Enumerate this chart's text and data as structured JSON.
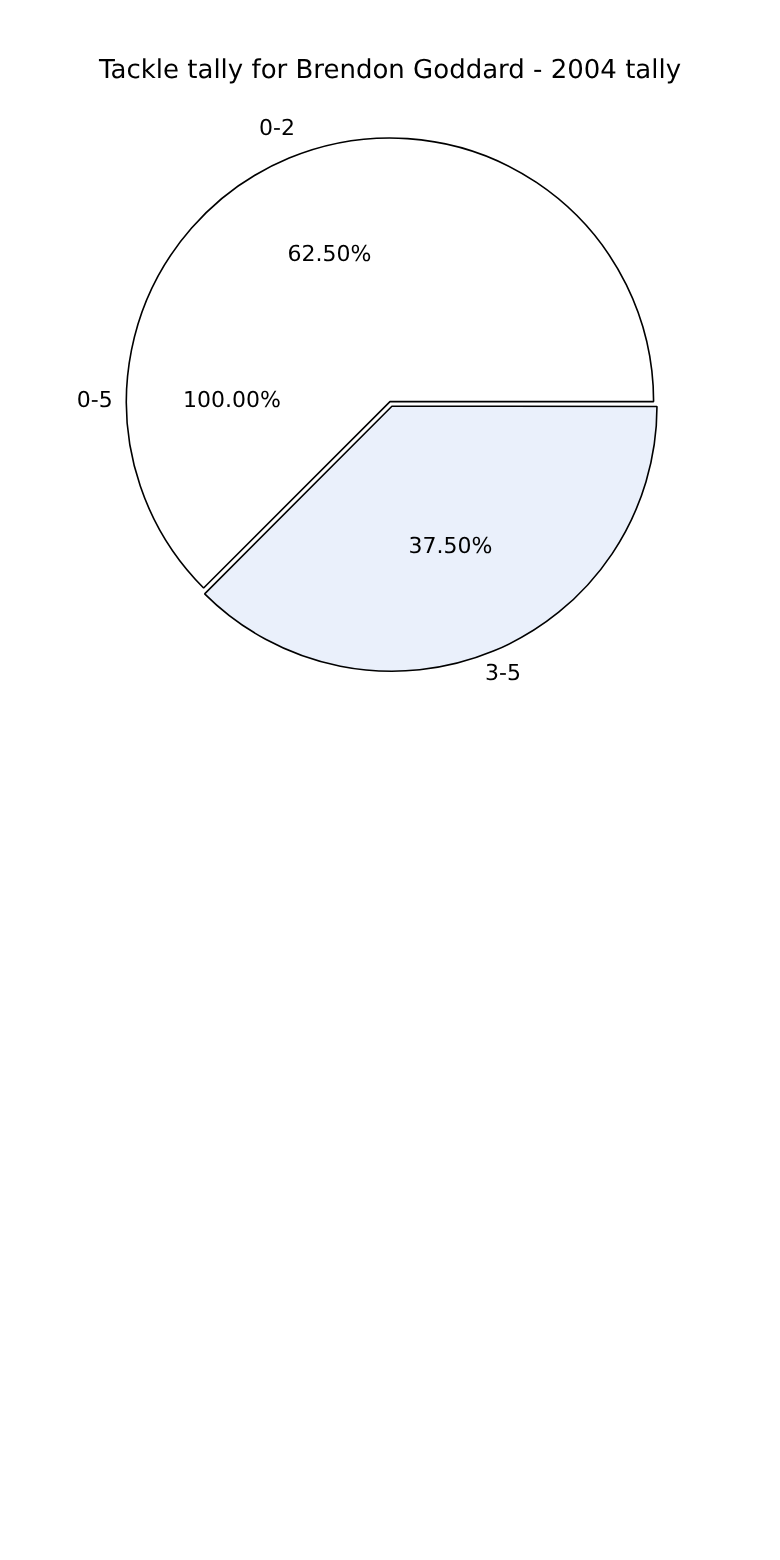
{
  "chart_data": {
    "type": "pie",
    "title": "Tackle tally for Brendon Goddard - 2004 tally",
    "categories": [
      "0-2",
      "3-5"
    ],
    "values": [
      62.5,
      37.5
    ],
    "value_labels": [
      "62.50%",
      "37.50%"
    ],
    "colors": [
      "#ffffff",
      "#eaf0fb"
    ],
    "annotations": [
      "0-5",
      "100.00%"
    ],
    "legend": false
  }
}
